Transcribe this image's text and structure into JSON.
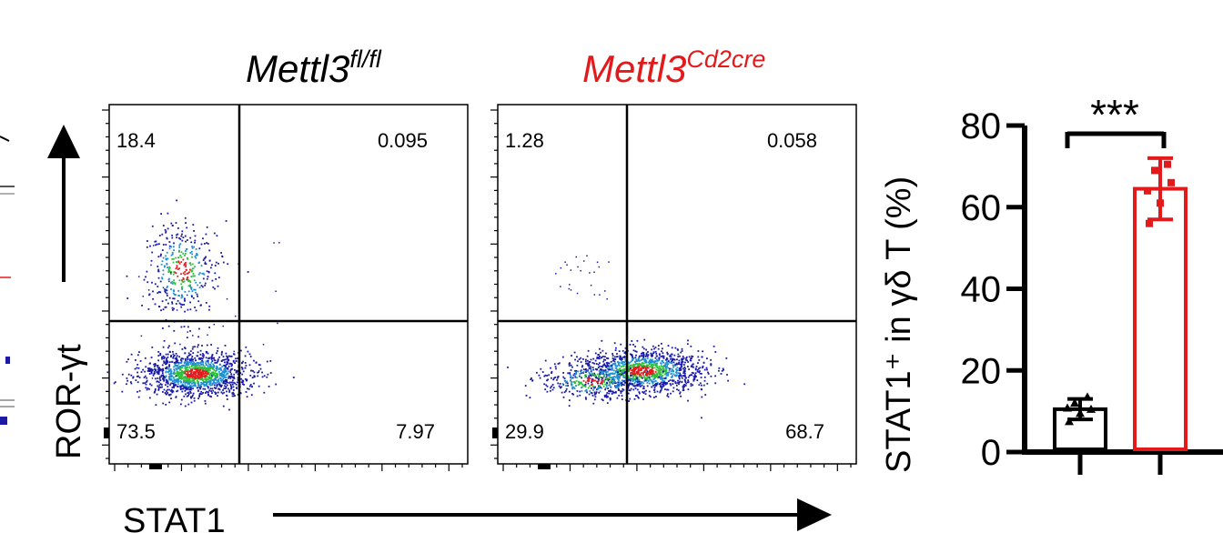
{
  "panels": [
    {
      "id": "flox",
      "title_main": "Mettl3",
      "title_sup": "fl/fl",
      "title_color": "#000000",
      "quadrants": {
        "top_left": "18.4",
        "top_right": "0.095",
        "bottom_left": "73.5",
        "bottom_right": "7.97"
      }
    },
    {
      "id": "cre",
      "title_main": "Mettl3",
      "title_sup": "Cd2cre",
      "title_color": "#e31a1c",
      "quadrants": {
        "top_left": "1.28",
        "top_right": "0.058",
        "bottom_left": "29.9",
        "bottom_right": "68.7"
      }
    }
  ],
  "flow_axes": {
    "y_label": "ROR-γt",
    "x_label": "STAT1"
  },
  "chart_data": {
    "type": "bar",
    "categories": [
      "Mettl3 fl/fl",
      "Mettl3 Cd2cre"
    ],
    "series": [
      {
        "values": [
          10.5,
          64.5
        ]
      }
    ],
    "error_bars": [
      2.5,
      7.5
    ],
    "points": [
      [
        7.5,
        9.5,
        10.5,
        12.0,
        13.5,
        10.8
      ],
      [
        56.0,
        61.0,
        66.0,
        69.0,
        70.5,
        64.0
      ]
    ],
    "colors": [
      "#000000",
      "#e31a1c"
    ],
    "ylim": [
      0,
      80
    ],
    "yticks": [
      "0",
      "20",
      "40",
      "60",
      "80"
    ],
    "ylabel": "STAT1⁺ in γδ T (%)",
    "significance": "***"
  }
}
